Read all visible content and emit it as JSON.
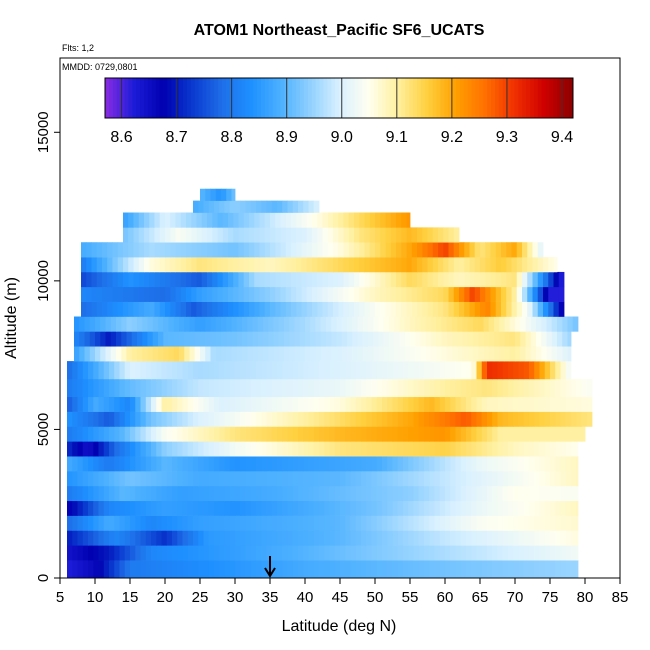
{
  "chart_data": {
    "type": "heatmap",
    "title": "ATOM1 Northeast_Pacific SF6_UCATS",
    "flights_note": "Flts: 1,2",
    "date_note": "MMDD: 0729,0801",
    "xlabel": "Latitude (deg N)",
    "ylabel": "Altitude (m)",
    "xlim": [
      5,
      85
    ],
    "ylim": [
      0,
      17500
    ],
    "x_ticks": [
      "5",
      "10",
      "15",
      "20",
      "25",
      "30",
      "35",
      "40",
      "45",
      "50",
      "55",
      "60",
      "65",
      "70",
      "75",
      "80",
      "85"
    ],
    "y_ticks": [
      "0",
      "5000",
      "10000",
      "15000"
    ],
    "colorbar": {
      "range": [
        8.57,
        9.42
      ],
      "tick_labels": [
        "8.6",
        "8.7",
        "8.8",
        "8.9",
        "9.0",
        "9.1",
        "9.2",
        "9.3",
        "9.4"
      ],
      "colors": [
        "#8a2be2",
        "#1c1cd8",
        "#0000b0",
        "#0a3ad0",
        "#1e6fe8",
        "#1e90ff",
        "#4cb0ff",
        "#8fd0ff",
        "#d8f0ff",
        "#fffff0",
        "#fff0a0",
        "#ffd040",
        "#ffa000",
        "#ff7000",
        "#f03000",
        "#d00000",
        "#8b0000"
      ]
    },
    "marker": {
      "latitude": 35,
      "symbol": "down-arrow"
    },
    "bands": [
      {
        "alt": [
          0,
          600
        ],
        "lat": [
          6,
          79
        ],
        "knots": [
          [
            6,
            8.62
          ],
          [
            10,
            8.66
          ],
          [
            15,
            8.8
          ],
          [
            25,
            8.83
          ],
          [
            40,
            8.88
          ],
          [
            60,
            8.92
          ],
          [
            79,
            8.95
          ]
        ]
      },
      {
        "alt": [
          600,
          1100
        ],
        "lat": [
          6,
          79
        ],
        "knots": [
          [
            6,
            8.64
          ],
          [
            12,
            8.7
          ],
          [
            18,
            8.82
          ],
          [
            30,
            8.86
          ],
          [
            50,
            8.93
          ],
          [
            65,
            8.98
          ],
          [
            79,
            9.03
          ]
        ]
      },
      {
        "alt": [
          1100,
          1600
        ],
        "lat": [
          6,
          79
        ],
        "knots": [
          [
            6,
            8.7
          ],
          [
            13,
            8.82
          ],
          [
            20,
            8.72
          ],
          [
            26,
            8.85
          ],
          [
            45,
            8.9
          ],
          [
            60,
            8.98
          ],
          [
            79,
            9.06
          ]
        ]
      },
      {
        "alt": [
          1600,
          2100
        ],
        "lat": [
          6,
          79
        ],
        "knots": [
          [
            6,
            8.78
          ],
          [
            12,
            8.88
          ],
          [
            18,
            8.82
          ],
          [
            25,
            8.86
          ],
          [
            45,
            8.9
          ],
          [
            65,
            9.04
          ],
          [
            79,
            9.07
          ]
        ]
      },
      {
        "alt": [
          2100,
          2600
        ],
        "lat": [
          6,
          79
        ],
        "knots": [
          [
            6,
            8.66
          ],
          [
            12,
            8.82
          ],
          [
            20,
            8.86
          ],
          [
            30,
            8.84
          ],
          [
            50,
            8.92
          ],
          [
            65,
            9.02
          ],
          [
            79,
            9.08
          ]
        ]
      },
      {
        "alt": [
          2600,
          3100
        ],
        "lat": [
          6,
          79
        ],
        "knots": [
          [
            6,
            8.8
          ],
          [
            14,
            8.9
          ],
          [
            22,
            8.86
          ],
          [
            35,
            8.88
          ],
          [
            55,
            8.94
          ],
          [
            70,
            9.05
          ],
          [
            79,
            9.04
          ]
        ]
      },
      {
        "alt": [
          3100,
          3600
        ],
        "lat": [
          6,
          79
        ],
        "knots": [
          [
            6,
            8.84
          ],
          [
            15,
            8.92
          ],
          [
            25,
            8.88
          ],
          [
            45,
            8.9
          ],
          [
            60,
            8.98
          ],
          [
            79,
            9.08
          ]
        ]
      },
      {
        "alt": [
          3600,
          4100
        ],
        "lat": [
          6,
          79
        ],
        "knots": [
          [
            6,
            8.88
          ],
          [
            12,
            8.8
          ],
          [
            20,
            8.9
          ],
          [
            30,
            8.84
          ],
          [
            50,
            8.88
          ],
          [
            65,
            9.02
          ],
          [
            79,
            9.08
          ]
        ]
      },
      {
        "alt": [
          4100,
          4600
        ],
        "lat": [
          6,
          79
        ],
        "knots": [
          [
            6,
            8.72
          ],
          [
            9,
            8.64
          ],
          [
            13,
            8.78
          ],
          [
            20,
            8.94
          ],
          [
            30,
            9.03
          ],
          [
            45,
            9.12
          ],
          [
            60,
            9.15
          ],
          [
            70,
            9.08
          ],
          [
            79,
            9.05
          ]
        ]
      },
      {
        "alt": [
          4600,
          5100
        ],
        "lat": [
          6,
          80
        ],
        "knots": [
          [
            6,
            8.8
          ],
          [
            14,
            8.9
          ],
          [
            20,
            9.04
          ],
          [
            30,
            9.12
          ],
          [
            45,
            9.18
          ],
          [
            60,
            9.22
          ],
          [
            68,
            9.1
          ],
          [
            80,
            9.1
          ]
        ]
      },
      {
        "alt": [
          5100,
          5600
        ],
        "lat": [
          6,
          81
        ],
        "knots": [
          [
            6,
            8.84
          ],
          [
            12,
            8.76
          ],
          [
            18,
            8.92
          ],
          [
            25,
            9.0
          ],
          [
            40,
            9.1
          ],
          [
            55,
            9.2
          ],
          [
            63,
            9.28
          ],
          [
            68,
            9.18
          ],
          [
            81,
            9.12
          ]
        ]
      },
      {
        "alt": [
          5600,
          6100
        ],
        "lat": [
          6,
          81
        ],
        "knots": [
          [
            6,
            8.76
          ],
          [
            10,
            8.88
          ],
          [
            15,
            8.82
          ],
          [
            20,
            9.1
          ],
          [
            28,
            9.0
          ],
          [
            45,
            9.06
          ],
          [
            58,
            9.18
          ],
          [
            66,
            9.08
          ],
          [
            81,
            9.06
          ]
        ]
      },
      {
        "alt": [
          6100,
          6700
        ],
        "lat": [
          6,
          81
        ],
        "knots": [
          [
            6,
            8.8
          ],
          [
            14,
            8.9
          ],
          [
            25,
            8.98
          ],
          [
            45,
            9.02
          ],
          [
            60,
            9.1
          ],
          [
            66,
            9.12
          ],
          [
            81,
            9.04
          ]
        ]
      },
      {
        "alt": [
          6700,
          7300
        ],
        "lat": [
          6,
          78
        ],
        "knots": [
          [
            6,
            8.78
          ],
          [
            15,
            9.0
          ],
          [
            25,
            8.96
          ],
          [
            45,
            9.0
          ],
          [
            64,
            9.05
          ],
          [
            66,
            9.32
          ],
          [
            72,
            9.28
          ],
          [
            78,
            9.02
          ]
        ]
      },
      {
        "alt": [
          7300,
          7800
        ],
        "lat": [
          7,
          78
        ],
        "knots": [
          [
            7,
            8.86
          ],
          [
            15,
            9.1
          ],
          [
            22,
            9.14
          ],
          [
            27,
            8.96
          ],
          [
            45,
            9.0
          ],
          [
            60,
            9.06
          ],
          [
            70,
            9.1
          ],
          [
            78,
            9.0
          ]
        ]
      },
      {
        "alt": [
          7800,
          8300
        ],
        "lat": [
          7,
          78
        ],
        "knots": [
          [
            7,
            8.82
          ],
          [
            12,
            8.7
          ],
          [
            20,
            8.9
          ],
          [
            30,
            8.92
          ],
          [
            45,
            8.98
          ],
          [
            60,
            9.08
          ],
          [
            70,
            9.12
          ],
          [
            78,
            8.95
          ]
        ]
      },
      {
        "alt": [
          8300,
          8800
        ],
        "lat": [
          7,
          79
        ],
        "knots": [
          [
            7,
            8.84
          ],
          [
            15,
            8.94
          ],
          [
            25,
            8.86
          ],
          [
            40,
            8.96
          ],
          [
            55,
            9.08
          ],
          [
            65,
            9.14
          ],
          [
            79,
            8.92
          ]
        ]
      },
      {
        "alt": [
          8800,
          9300
        ],
        "lat": [
          8,
          77
        ],
        "knots": [
          [
            8,
            8.78
          ],
          [
            18,
            8.88
          ],
          [
            24,
            8.76
          ],
          [
            35,
            8.9
          ],
          [
            50,
            9.04
          ],
          [
            60,
            9.12
          ],
          [
            66,
            9.24
          ],
          [
            72,
            9.02
          ],
          [
            77,
            8.64
          ]
        ]
      },
      {
        "alt": [
          9300,
          9800
        ],
        "lat": [
          8,
          77
        ],
        "knots": [
          [
            8,
            8.82
          ],
          [
            20,
            8.78
          ],
          [
            25,
            8.86
          ],
          [
            35,
            8.94
          ],
          [
            50,
            9.08
          ],
          [
            60,
            9.14
          ],
          [
            64,
            9.3
          ],
          [
            70,
            9.1
          ],
          [
            75,
            8.62
          ]
        ]
      },
      {
        "alt": [
          9800,
          10300
        ],
        "lat": [
          8,
          77
        ],
        "knots": [
          [
            8,
            8.74
          ],
          [
            15,
            8.84
          ],
          [
            25,
            8.76
          ],
          [
            33,
            8.96
          ],
          [
            45,
            9.0
          ],
          [
            55,
            9.14
          ],
          [
            62,
            9.08
          ],
          [
            70,
            9.12
          ],
          [
            77,
            8.6
          ]
        ]
      },
      {
        "alt": [
          10300,
          10800
        ],
        "lat": [
          8,
          76
        ],
        "knots": [
          [
            8,
            8.8
          ],
          [
            18,
            9.06
          ],
          [
            25,
            9.12
          ],
          [
            35,
            9.08
          ],
          [
            45,
            9.14
          ],
          [
            55,
            9.2
          ],
          [
            62,
            9.1
          ],
          [
            68,
            9.16
          ],
          [
            76,
            9.05
          ]
        ]
      },
      {
        "alt": [
          10800,
          11300
        ],
        "lat": [
          8,
          74
        ],
        "knots": [
          [
            8,
            8.88
          ],
          [
            18,
            8.96
          ],
          [
            30,
            8.92
          ],
          [
            45,
            9.06
          ],
          [
            55,
            9.2
          ],
          [
            60,
            9.3
          ],
          [
            65,
            9.12
          ],
          [
            70,
            9.2
          ],
          [
            74,
            9.0
          ]
        ]
      },
      {
        "alt": [
          11300,
          11800
        ],
        "lat": [
          14,
          62
        ],
        "knots": [
          [
            14,
            8.92
          ],
          [
            22,
            9.04
          ],
          [
            30,
            8.96
          ],
          [
            40,
            9.0
          ],
          [
            48,
            9.12
          ],
          [
            55,
            9.18
          ],
          [
            62,
            9.1
          ]
        ]
      },
      {
        "alt": [
          11800,
          12300
        ],
        "lat": [
          14,
          55
        ],
        "knots": [
          [
            14,
            8.86
          ],
          [
            20,
            9.0
          ],
          [
            28,
            8.9
          ],
          [
            35,
            8.98
          ],
          [
            42,
            9.06
          ],
          [
            48,
            9.14
          ],
          [
            55,
            9.22
          ]
        ]
      },
      {
        "alt": [
          12300,
          12700
        ],
        "lat": [
          24,
          42
        ],
        "knots": [
          [
            24,
            8.88
          ],
          [
            30,
            8.94
          ],
          [
            36,
            8.9
          ],
          [
            42,
            9.0
          ]
        ]
      },
      {
        "alt": [
          12700,
          13100
        ],
        "lat": [
          25,
          30
        ],
        "knots": [
          [
            25,
            8.9
          ],
          [
            28,
            8.84
          ],
          [
            30,
            8.92
          ]
        ]
      }
    ]
  }
}
